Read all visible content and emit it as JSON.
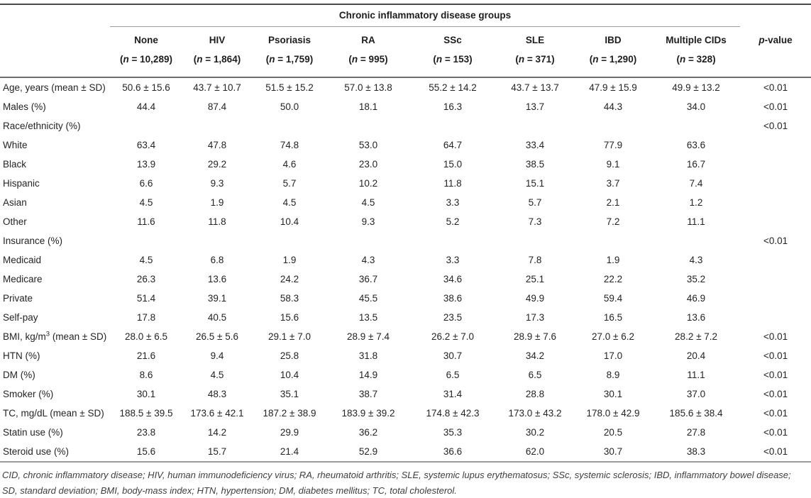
{
  "table": {
    "group_header": "Chronic inflammatory disease groups",
    "n_prefix": "n",
    "p_col": {
      "italic": "p",
      "rest": "-value"
    },
    "columns": [
      {
        "label": "None",
        "n": "10,289"
      },
      {
        "label": "HIV",
        "n": "1,864"
      },
      {
        "label": "Psoriasis",
        "n": "1,759"
      },
      {
        "label": "RA",
        "n": "995"
      },
      {
        "label": "SSc",
        "n": "153"
      },
      {
        "label": "SLE",
        "n": "371"
      },
      {
        "label": "IBD",
        "n": "1,290"
      },
      {
        "label": "Multiple CIDs",
        "n": "328"
      }
    ],
    "rows": [
      {
        "label": "Age, years (mean ± SD)",
        "values": [
          "50.6 ± 15.6",
          "43.7 ± 10.7",
          "51.5 ± 15.2",
          "57.0 ± 13.8",
          "55.2 ± 14.2",
          "43.7 ± 13.7",
          "47.9 ± 15.9",
          "49.9 ± 13.2"
        ],
        "p": "<0.01"
      },
      {
        "label": "Males (%)",
        "values": [
          "44.4",
          "87.4",
          "50.0",
          "18.1",
          "16.3",
          "13.7",
          "44.3",
          "34.0"
        ],
        "p": "<0.01"
      },
      {
        "label": "Race/ethnicity (%)",
        "values": [
          "",
          "",
          "",
          "",
          "",
          "",
          "",
          ""
        ],
        "p": "<0.01"
      },
      {
        "label": "White",
        "values": [
          "63.4",
          "47.8",
          "74.8",
          "53.0",
          "64.7",
          "33.4",
          "77.9",
          "63.6"
        ],
        "p": ""
      },
      {
        "label": "Black",
        "values": [
          "13.9",
          "29.2",
          "4.6",
          "23.0",
          "15.0",
          "38.5",
          "9.1",
          "16.7"
        ],
        "p": ""
      },
      {
        "label": "Hispanic",
        "values": [
          "6.6",
          "9.3",
          "5.7",
          "10.2",
          "11.8",
          "15.1",
          "3.7",
          "7.4"
        ],
        "p": ""
      },
      {
        "label": "Asian",
        "values": [
          "4.5",
          "1.9",
          "4.5",
          "4.5",
          "3.3",
          "5.7",
          "2.1",
          "1.2"
        ],
        "p": ""
      },
      {
        "label": "Other",
        "values": [
          "11.6",
          "11.8",
          "10.4",
          "9.3",
          "5.2",
          "7.3",
          "7.2",
          "11.1"
        ],
        "p": ""
      },
      {
        "label": "Insurance (%)",
        "values": [
          "",
          "",
          "",
          "",
          "",
          "",
          "",
          ""
        ],
        "p": "<0.01"
      },
      {
        "label": "Medicaid",
        "values": [
          "4.5",
          "6.8",
          "1.9",
          "4.3",
          "3.3",
          "7.8",
          "1.9",
          "4.3"
        ],
        "p": ""
      },
      {
        "label": "Medicare",
        "values": [
          "26.3",
          "13.6",
          "24.2",
          "36.7",
          "34.6",
          "25.1",
          "22.2",
          "35.2"
        ],
        "p": ""
      },
      {
        "label": "Private",
        "values": [
          "51.4",
          "39.1",
          "58.3",
          "45.5",
          "38.6",
          "49.9",
          "59.4",
          "46.9"
        ],
        "p": ""
      },
      {
        "label": "Self-pay",
        "values": [
          "17.8",
          "40.5",
          "15.6",
          "13.5",
          "23.5",
          "17.3",
          "16.5",
          "13.6"
        ],
        "p": ""
      },
      {
        "label_parts": [
          {
            "t": "BMI, kg/m"
          },
          {
            "t": "3",
            "sup": true
          },
          {
            "t": " (mean ± SD)"
          }
        ],
        "values": [
          "28.0 ± 6.5",
          "26.5 ± 5.6",
          "29.1 ± 7.0",
          "28.9 ± 7.4",
          "26.2 ± 7.0",
          "28.9 ± 7.6",
          "27.0 ± 6.2",
          "28.2 ± 7.2"
        ],
        "p": "<0.01"
      },
      {
        "label": "HTN (%)",
        "values": [
          "21.6",
          "9.4",
          "25.8",
          "31.8",
          "30.7",
          "34.2",
          "17.0",
          "20.4"
        ],
        "p": "<0.01"
      },
      {
        "label": "DM (%)",
        "values": [
          "8.6",
          "4.5",
          "10.4",
          "14.9",
          "6.5",
          "6.5",
          "8.9",
          "11.1"
        ],
        "p": "<0.01"
      },
      {
        "label": "Smoker (%)",
        "values": [
          "30.1",
          "48.3",
          "35.1",
          "38.7",
          "31.4",
          "28.8",
          "30.1",
          "37.0"
        ],
        "p": "<0.01"
      },
      {
        "label": "TC, mg/dL (mean ± SD)",
        "values": [
          "188.5 ± 39.5",
          "173.6 ± 42.1",
          "187.2 ± 38.9",
          "183.9 ± 39.2",
          "174.8 ± 42.3",
          "173.0 ± 43.2",
          "178.0 ± 42.9",
          "185.6 ± 38.4"
        ],
        "p": "<0.01"
      },
      {
        "label": "Statin use (%)",
        "values": [
          "23.8",
          "14.2",
          "29.9",
          "36.2",
          "35.3",
          "30.2",
          "20.5",
          "27.8"
        ],
        "p": "<0.01"
      },
      {
        "label": "Steroid use (%)",
        "values": [
          "15.6",
          "15.7",
          "21.4",
          "52.9",
          "36.6",
          "62.0",
          "30.7",
          "38.3"
        ],
        "p": "<0.01"
      }
    ],
    "footnote": "CID, chronic inflammatory disease; HIV, human immunodeficiency virus; RA, rheumatoid arthritis; SLE, systemic lupus erythematosus; SSc, systemic sclerosis; IBD, inflammatory bowel disease; SD, standard deviation; BMI, body-mass index; HTN, hypertension; DM, diabetes mellitus; TC, total cholesterol."
  }
}
